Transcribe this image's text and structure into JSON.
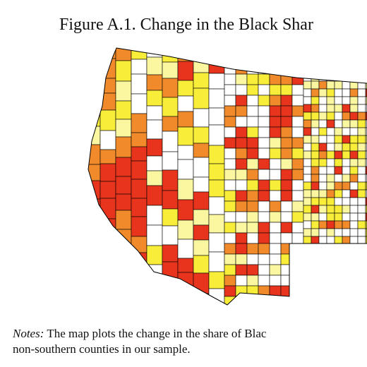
{
  "header": {
    "title": "Figure A.1. Change in the Black Shar"
  },
  "notes": {
    "label": "Notes:",
    "line1": "The map plots the change in the share of Blac",
    "line2": "non-southern counties in our sample."
  }
}
